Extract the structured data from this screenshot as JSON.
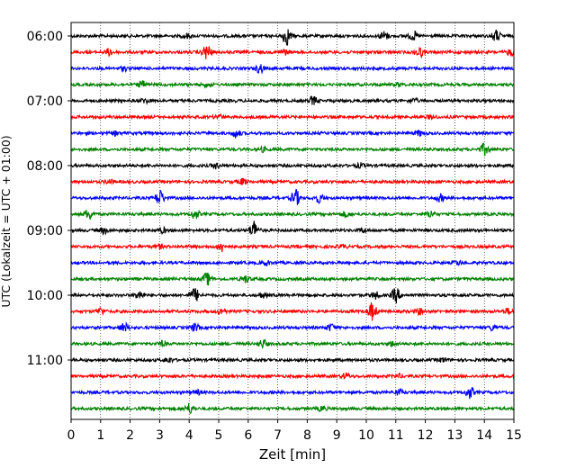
{
  "chart_data": {
    "type": "line",
    "xlabel": "Zeit  [min]",
    "ylabel": "UTC (Lokalzeit = UTC + 01:00)",
    "xlim": [
      0,
      15
    ],
    "x_ticks": [
      0,
      1,
      2,
      3,
      4,
      5,
      6,
      7,
      8,
      9,
      10,
      11,
      12,
      13,
      14,
      15
    ],
    "y_tick_labels": [
      "06:00",
      "07:00",
      "08:00",
      "09:00",
      "10:00",
      "11:00"
    ],
    "y_tick_trace_index": [
      0,
      4,
      8,
      12,
      16,
      20
    ],
    "vertical_grid": "dotted, every minute",
    "trace_interval_minutes": 15,
    "color_cycle": [
      "#000000",
      "#ff0000",
      "#0000ff",
      "#008000"
    ],
    "traces": [
      {
        "start": "06:00",
        "bursts": [
          [
            7.3,
            3.2
          ],
          [
            10.6,
            1.6
          ],
          [
            11.6,
            1.5
          ],
          [
            14.4,
            2.0
          ],
          [
            3.9,
            0.8
          ]
        ]
      },
      {
        "start": "06:15",
        "bursts": [
          [
            4.6,
            2.8
          ],
          [
            1.3,
            1.2
          ],
          [
            7.2,
            1.0
          ],
          [
            11.8,
            1.8
          ],
          [
            14.9,
            1.2
          ]
        ]
      },
      {
        "start": "06:30",
        "bursts": [
          [
            6.4,
            1.6
          ],
          [
            1.8,
            0.7
          ]
        ]
      },
      {
        "start": "06:45",
        "bursts": [
          [
            2.4,
            1.1
          ],
          [
            4.6,
            0.7
          ],
          [
            11.1,
            0.6
          ]
        ]
      },
      {
        "start": "07:00",
        "bursts": [
          [
            8.2,
            1.5
          ],
          [
            2.5,
            0.8
          ],
          [
            11.6,
            0.7
          ]
        ]
      },
      {
        "start": "07:15",
        "bursts": [
          [
            5.0,
            0.7
          ],
          [
            12.2,
            0.7
          ]
        ]
      },
      {
        "start": "07:30",
        "bursts": [
          [
            5.6,
            1.4
          ],
          [
            11.8,
            0.9
          ],
          [
            1.5,
            0.6
          ]
        ]
      },
      {
        "start": "07:45",
        "bursts": [
          [
            14.0,
            2.0
          ],
          [
            6.5,
            0.7
          ]
        ]
      },
      {
        "start": "08:00",
        "bursts": [
          [
            4.9,
            0.9
          ],
          [
            9.8,
            0.7
          ]
        ]
      },
      {
        "start": "08:15",
        "bursts": [
          [
            5.8,
            1.0
          ],
          [
            1.3,
            0.7
          ]
        ]
      },
      {
        "start": "08:30",
        "bursts": [
          [
            3.0,
            2.8
          ],
          [
            7.6,
            3.0
          ],
          [
            8.4,
            1.5
          ],
          [
            12.5,
            1.2
          ]
        ]
      },
      {
        "start": "08:45",
        "bursts": [
          [
            0.6,
            1.8
          ],
          [
            4.2,
            1.6
          ],
          [
            12.2,
            1.2
          ],
          [
            9.3,
            0.9
          ]
        ]
      },
      {
        "start": "09:00",
        "bursts": [
          [
            6.2,
            3.4
          ],
          [
            1.1,
            1.0
          ],
          [
            3.1,
            0.8
          ],
          [
            9.9,
            0.7
          ]
        ]
      },
      {
        "start": "09:15",
        "bursts": [
          [
            5.1,
            1.8
          ],
          [
            3.0,
            0.6
          ],
          [
            9.2,
            0.6
          ]
        ]
      },
      {
        "start": "09:30",
        "bursts": [
          [
            6.6,
            0.8
          ],
          [
            13.1,
            0.7
          ]
        ]
      },
      {
        "start": "09:45",
        "bursts": [
          [
            4.6,
            2.2
          ],
          [
            5.9,
            1.2
          ]
        ]
      },
      {
        "start": "10:00",
        "bursts": [
          [
            4.2,
            2.4
          ],
          [
            2.3,
            1.5
          ],
          [
            11.0,
            2.6
          ],
          [
            10.3,
            1.2
          ],
          [
            6.5,
            0.8
          ]
        ]
      },
      {
        "start": "10:15",
        "bursts": [
          [
            10.2,
            3.2
          ],
          [
            1.0,
            1.2
          ],
          [
            5.1,
            1.0
          ],
          [
            11.8,
            1.0
          ],
          [
            14.8,
            0.9
          ]
        ]
      },
      {
        "start": "10:30",
        "bursts": [
          [
            1.8,
            1.6
          ],
          [
            4.2,
            1.3
          ],
          [
            8.8,
            1.2
          ],
          [
            14.3,
            1.0
          ]
        ]
      },
      {
        "start": "10:45",
        "bursts": [
          [
            6.5,
            1.5
          ],
          [
            3.1,
            0.8
          ],
          [
            10.9,
            0.8
          ]
        ]
      },
      {
        "start": "11:00",
        "bursts": [
          [
            3.3,
            0.9
          ],
          [
            12.6,
            0.7
          ]
        ]
      },
      {
        "start": "11:15",
        "bursts": [
          [
            9.3,
            0.9
          ],
          [
            11.1,
            0.6
          ]
        ]
      },
      {
        "start": "11:30",
        "bursts": [
          [
            13.5,
            2.1
          ],
          [
            11.1,
            1.0
          ],
          [
            4.3,
            0.7
          ]
        ]
      },
      {
        "start": "11:45",
        "bursts": [
          [
            4.0,
            1.8
          ],
          [
            8.5,
            0.8
          ]
        ]
      }
    ]
  }
}
